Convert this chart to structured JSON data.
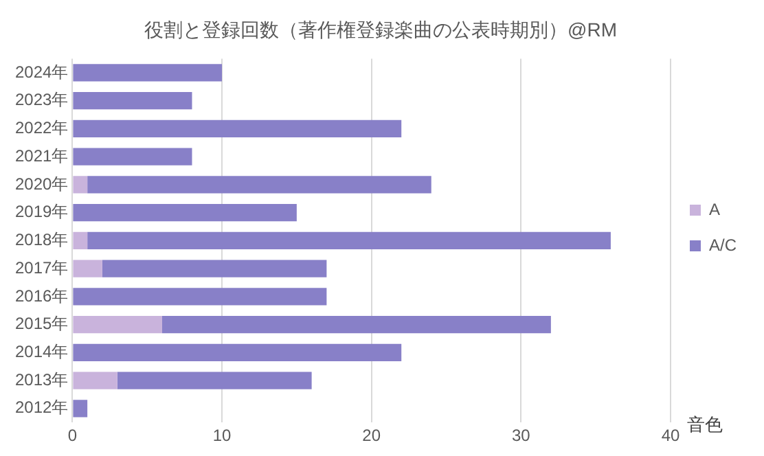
{
  "chart_data": {
    "type": "bar",
    "orientation": "horizontal",
    "stacked": true,
    "title": "役割と登録回数（著作権登録楽曲の公表時期別）@RM",
    "categories": [
      "2024年",
      "2023年",
      "2022年",
      "2021年",
      "2020年",
      "2019年",
      "2018年",
      "2017年",
      "2016年",
      "2015年",
      "2014年",
      "2013年",
      "2012年"
    ],
    "series": [
      {
        "name": "A",
        "color": "#c9b3dc",
        "values": [
          0,
          0,
          0,
          0,
          1,
          0,
          1,
          2,
          0,
          6,
          0,
          3,
          0
        ]
      },
      {
        "name": "A/C",
        "color": "#8880c8",
        "values": [
          10,
          8,
          22,
          8,
          23,
          15,
          35,
          15,
          17,
          26,
          22,
          13,
          1
        ]
      }
    ],
    "xlim": [
      0,
      40
    ],
    "xticks": [
      0,
      10,
      20,
      30,
      40
    ],
    "grid": "x",
    "legend": "right",
    "annotations": [
      "音色"
    ]
  }
}
